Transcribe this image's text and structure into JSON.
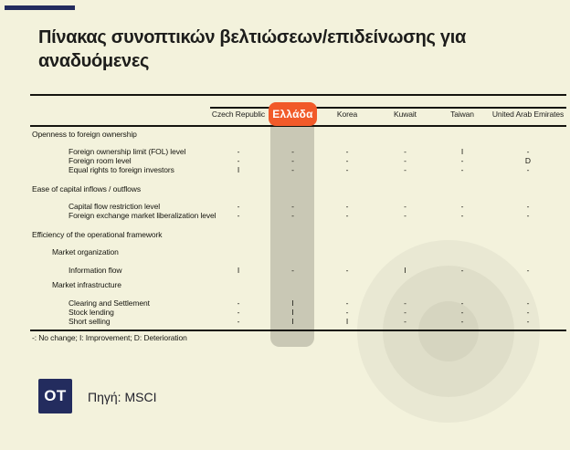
{
  "page": {
    "background_color": "#f3f2dc",
    "accent_navy": "#232c5e",
    "accent_orange": "#f15a29",
    "highlight_band_color": "#c9c8b5"
  },
  "title": "Πίνακας συνοπτικών βελτιώσεων/επιδείνωσης για αναδυόμενες",
  "chart_data": {
    "type": "table",
    "title": "Πίνακας συνοπτικών βελτιώσεων/επιδείνωσης για αναδυόμενες",
    "columns": [
      "Czech Republic",
      "Ελλάδα",
      "Korea",
      "Kuwait",
      "Taiwan",
      "United Arab Emirates"
    ],
    "highlighted_column": "Ελλάδα",
    "rows": [
      {
        "kind": "section",
        "label": "Openness to foreign ownership",
        "values": null
      },
      {
        "kind": "item",
        "label": "Foreign ownership limit (FOL) level",
        "values": [
          "-",
          "-",
          "-",
          "-",
          "I",
          "-"
        ]
      },
      {
        "kind": "item",
        "label": "Foreign room level",
        "values": [
          "-",
          "-",
          "-",
          "-",
          "-",
          "D"
        ]
      },
      {
        "kind": "item",
        "label": "Equal rights to foreign investors",
        "values": [
          "I",
          "-",
          "-",
          "-",
          "-",
          "-"
        ]
      },
      {
        "kind": "section",
        "label": "Ease of capital inflows / outflows",
        "values": null
      },
      {
        "kind": "item",
        "label": "Capital flow restriction level",
        "values": [
          "-",
          "-",
          "-",
          "-",
          "-",
          "-"
        ]
      },
      {
        "kind": "item",
        "label": "Foreign exchange market liberalization level",
        "values": [
          "-",
          "-",
          "-",
          "-",
          "-",
          "-"
        ]
      },
      {
        "kind": "section",
        "label": "Efficiency of the operational framework",
        "values": null
      },
      {
        "kind": "subsection",
        "label": "Market organization",
        "values": null
      },
      {
        "kind": "item",
        "label": "Information flow",
        "values": [
          "I",
          "-",
          "-",
          "I",
          "-",
          "-"
        ]
      },
      {
        "kind": "subsection",
        "label": "Market infrastructure",
        "values": null
      },
      {
        "kind": "item",
        "label": "Clearing and Settlement",
        "values": [
          "-",
          "I",
          "-",
          "-",
          "-",
          "-"
        ]
      },
      {
        "kind": "item",
        "label": "Stock lending",
        "values": [
          "-",
          "I",
          "-",
          "-",
          "-",
          "-"
        ]
      },
      {
        "kind": "item",
        "label": "Short selling",
        "values": [
          "-",
          "I",
          "I",
          "-",
          "-",
          "-"
        ]
      }
    ],
    "footnote": "-: No change; I: Improvement; D: Deterioration",
    "legend": {
      "-": "No change",
      "I": "Improvement",
      "D": "Deterioration"
    }
  },
  "footer": {
    "logo_text": "OT",
    "source": "Πηγή: MSCI"
  }
}
